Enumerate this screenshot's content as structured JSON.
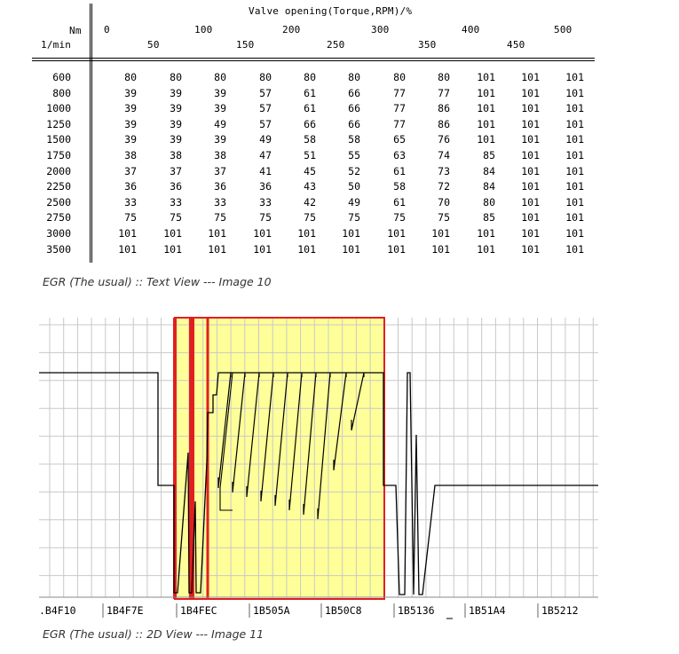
{
  "text_view": {
    "title": "Valve opening(Torque,RPM)/%",
    "corner_top": "Nm",
    "corner_bottom": "1/min",
    "col_top": [
      "0",
      "100",
      "200",
      "300",
      "400",
      "500"
    ],
    "col_bottom": [
      "50",
      "150",
      "250",
      "350",
      "450"
    ],
    "row_labels": [
      "600",
      "800",
      "1000",
      "1250",
      "1500",
      "1750",
      "2000",
      "2250",
      "2500",
      "2750",
      "3000",
      "3500"
    ],
    "rows": [
      [
        "80",
        "80",
        "80",
        "80",
        "80",
        "80",
        "80",
        "80",
        "101",
        "101",
        "101"
      ],
      [
        "39",
        "39",
        "39",
        "57",
        "61",
        "66",
        "77",
        "77",
        "101",
        "101",
        "101"
      ],
      [
        "39",
        "39",
        "39",
        "57",
        "61",
        "66",
        "77",
        "86",
        "101",
        "101",
        "101"
      ],
      [
        "39",
        "39",
        "49",
        "57",
        "66",
        "66",
        "77",
        "86",
        "101",
        "101",
        "101"
      ],
      [
        "39",
        "39",
        "39",
        "49",
        "58",
        "58",
        "65",
        "76",
        "101",
        "101",
        "101"
      ],
      [
        "38",
        "38",
        "38",
        "47",
        "51",
        "55",
        "63",
        "74",
        "85",
        "101",
        "101"
      ],
      [
        "37",
        "37",
        "37",
        "41",
        "45",
        "52",
        "61",
        "73",
        "84",
        "101",
        "101"
      ],
      [
        "36",
        "36",
        "36",
        "36",
        "43",
        "50",
        "58",
        "72",
        "84",
        "101",
        "101"
      ],
      [
        "33",
        "33",
        "33",
        "33",
        "42",
        "49",
        "61",
        "70",
        "80",
        "101",
        "101"
      ],
      [
        "75",
        "75",
        "75",
        "75",
        "75",
        "75",
        "75",
        "75",
        "85",
        "101",
        "101"
      ],
      [
        "101",
        "101",
        "101",
        "101",
        "101",
        "101",
        "101",
        "101",
        "101",
        "101",
        "101"
      ],
      [
        "101",
        "101",
        "101",
        "101",
        "101",
        "101",
        "101",
        "101",
        "101",
        "101",
        "101"
      ]
    ],
    "caption": "EGR (The usual) :: Text View --- Image 10"
  },
  "graph_view": {
    "x_labels": [
      ".B4F10",
      "1B4F7E",
      "1B4FEC",
      "1B505A",
      "1B50C8",
      "1B5136",
      "1B51A4",
      "1B5212"
    ],
    "highlight_color": "#ffff99",
    "outline_color": "#e02020",
    "line_color": "#000000",
    "caption": "EGR (The usual) :: 2D View --- Image 11"
  }
}
